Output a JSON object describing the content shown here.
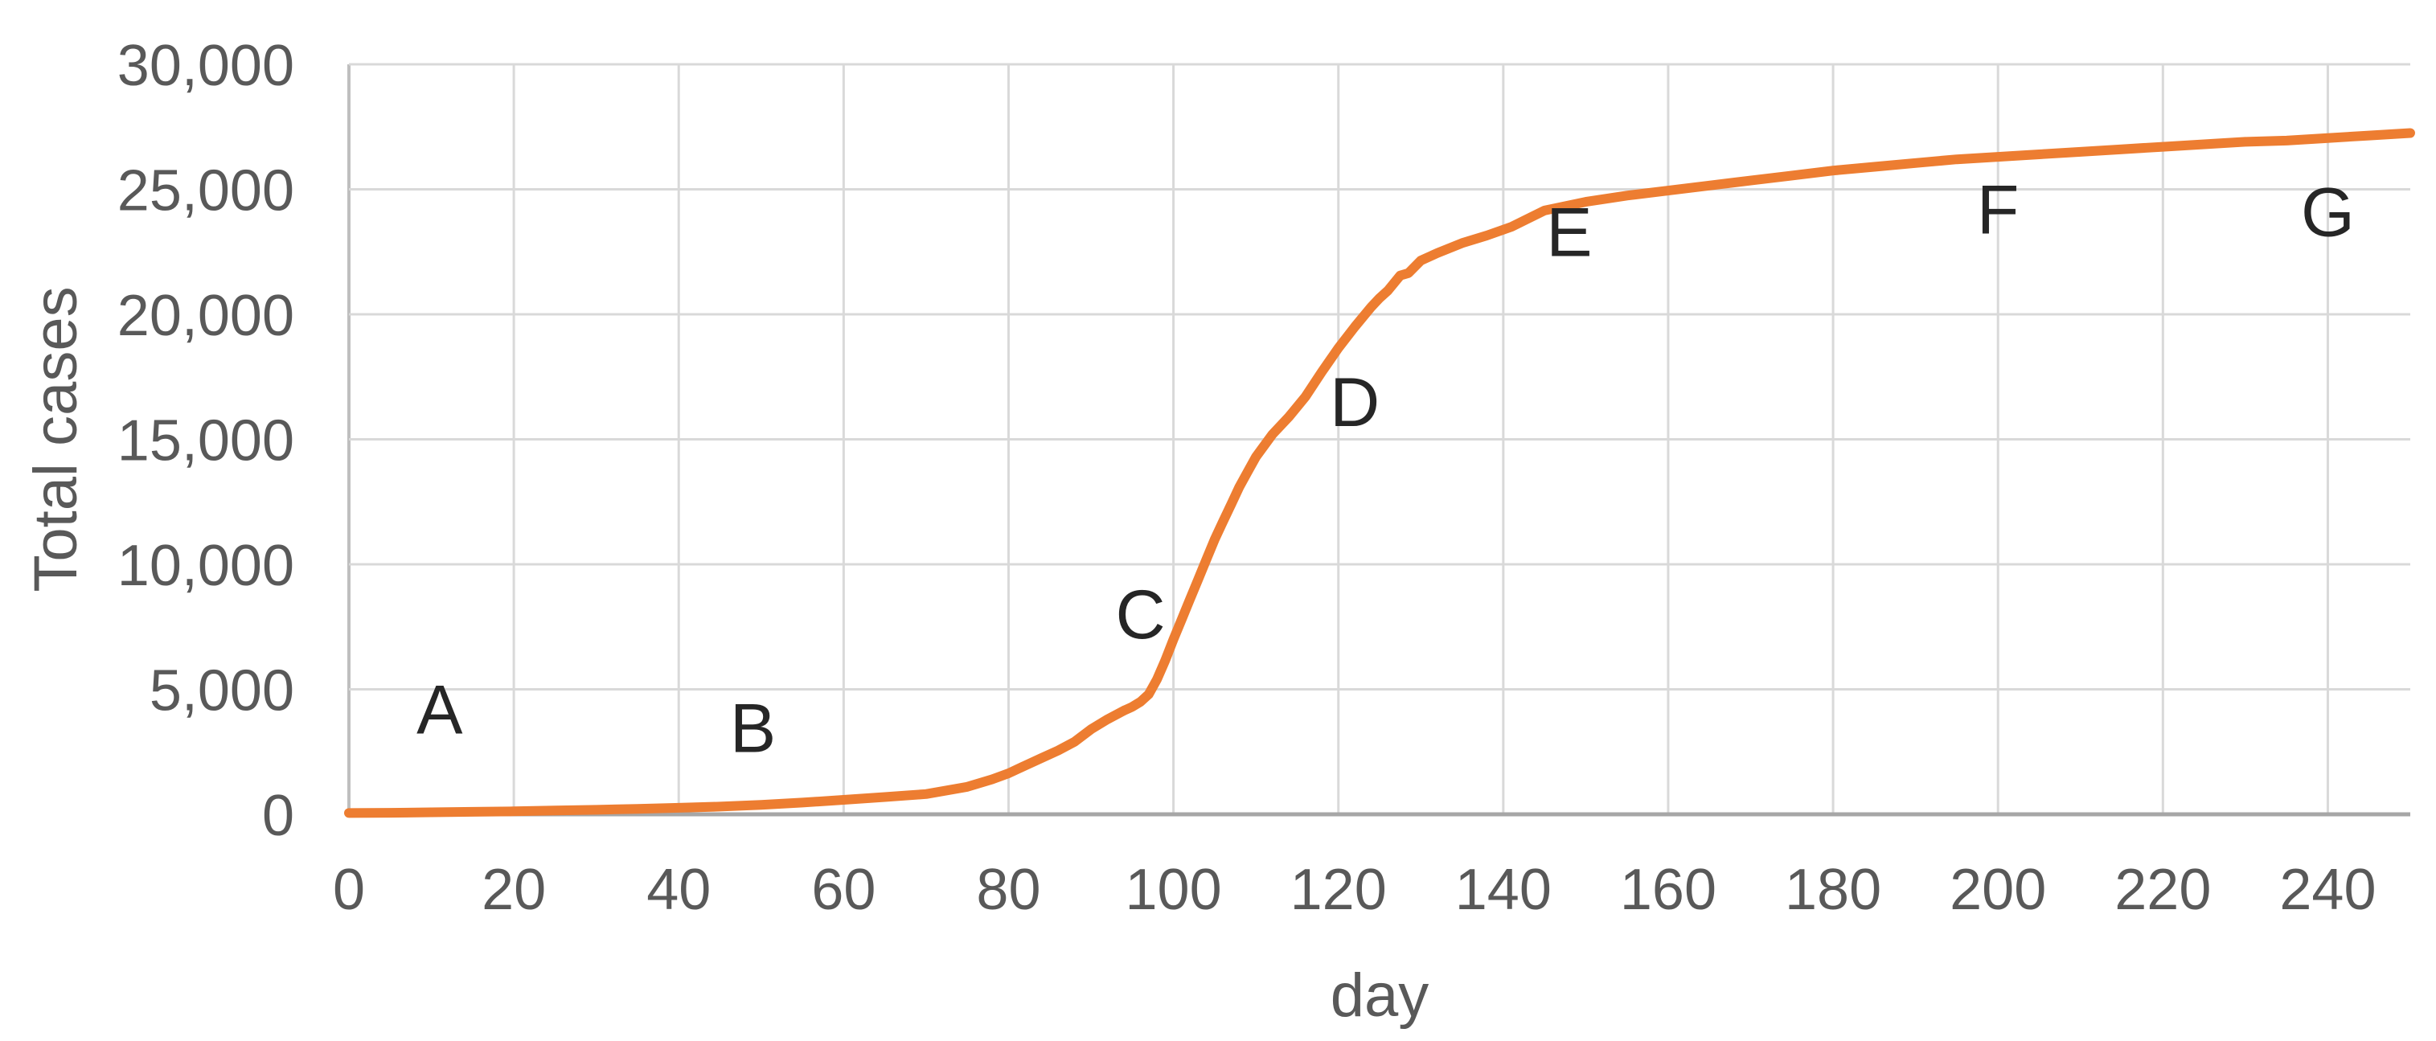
{
  "chart_data": {
    "type": "line",
    "title": "",
    "xlabel": "day",
    "ylabel": "Total cases",
    "xlim": [
      0,
      250
    ],
    "ylim": [
      0,
      30000
    ],
    "grid": true,
    "legend": "none",
    "x_ticks": [
      0,
      20,
      40,
      60,
      80,
      100,
      120,
      140,
      160,
      180,
      200,
      220,
      240
    ],
    "x_tick_labels": [
      "0",
      "20",
      "40",
      "60",
      "80",
      "100",
      "120",
      "140",
      "160",
      "180",
      "200",
      "220",
      "240"
    ],
    "y_ticks": [
      0,
      5000,
      10000,
      15000,
      20000,
      25000,
      30000
    ],
    "y_tick_labels": [
      "0",
      "5,000",
      "10,000",
      "15,000",
      "20,000",
      "25,000",
      "30,000"
    ],
    "series": [
      {
        "name": "Total cases",
        "color": "#ED7D31",
        "points": [
          [
            0,
            50
          ],
          [
            5,
            60
          ],
          [
            10,
            80
          ],
          [
            15,
            100
          ],
          [
            20,
            120
          ],
          [
            25,
            150
          ],
          [
            30,
            180
          ],
          [
            35,
            220
          ],
          [
            40,
            260
          ],
          [
            45,
            310
          ],
          [
            50,
            380
          ],
          [
            55,
            470
          ],
          [
            60,
            580
          ],
          [
            65,
            690
          ],
          [
            70,
            810
          ],
          [
            75,
            1100
          ],
          [
            78,
            1400
          ],
          [
            80,
            1640
          ],
          [
            82,
            1950
          ],
          [
            84,
            2250
          ],
          [
            86,
            2550
          ],
          [
            88,
            2900
          ],
          [
            90,
            3400
          ],
          [
            92,
            3800
          ],
          [
            94,
            4150
          ],
          [
            95,
            4300
          ],
          [
            96,
            4500
          ],
          [
            97,
            4800
          ],
          [
            98,
            5400
          ],
          [
            99,
            6150
          ],
          [
            100,
            7000
          ],
          [
            101,
            7800
          ],
          [
            102,
            8600
          ],
          [
            103,
            9400
          ],
          [
            104,
            10200
          ],
          [
            105,
            11000
          ],
          [
            106,
            11700
          ],
          [
            107,
            12400
          ],
          [
            108,
            13100
          ],
          [
            109,
            13700
          ],
          [
            110,
            14300
          ],
          [
            112,
            15200
          ],
          [
            114,
            15900
          ],
          [
            116,
            16700
          ],
          [
            118,
            17700
          ],
          [
            120,
            18650
          ],
          [
            122,
            19500
          ],
          [
            124,
            20300
          ],
          [
            125,
            20650
          ],
          [
            126,
            20950
          ],
          [
            127.5,
            21550
          ],
          [
            128.5,
            21650
          ],
          [
            130,
            22150
          ],
          [
            132,
            22450
          ],
          [
            135,
            22850
          ],
          [
            138,
            23150
          ],
          [
            141,
            23500
          ],
          [
            145,
            24150
          ],
          [
            150,
            24500
          ],
          [
            155,
            24750
          ],
          [
            160,
            24950
          ],
          [
            165,
            25150
          ],
          [
            170,
            25350
          ],
          [
            175,
            25550
          ],
          [
            180,
            25750
          ],
          [
            185,
            25900
          ],
          [
            190,
            26050
          ],
          [
            195,
            26200
          ],
          [
            200,
            26300
          ],
          [
            205,
            26400
          ],
          [
            210,
            26500
          ],
          [
            215,
            26600
          ],
          [
            220,
            26700
          ],
          [
            225,
            26800
          ],
          [
            230,
            26900
          ],
          [
            235,
            26950
          ],
          [
            240,
            27050
          ],
          [
            245,
            27150
          ],
          [
            250,
            27250
          ]
        ]
      }
    ],
    "annotations": [
      {
        "label": "A",
        "day": 11,
        "value": 4200
      },
      {
        "label": "B",
        "day": 49,
        "value": 3450
      },
      {
        "label": "C",
        "day": 96,
        "value": 8000
      },
      {
        "label": "D",
        "day": 122,
        "value": 16500
      },
      {
        "label": "E",
        "day": 148,
        "value": 23300
      },
      {
        "label": "F",
        "day": 200,
        "value": 24200
      },
      {
        "label": "G",
        "day": 240,
        "value": 24100
      }
    ]
  },
  "colors": {
    "line": "#ED7D31",
    "gridline": "#D9D9D9",
    "axis_line": "#BFBFBF",
    "bottom_axis": "#A6A6A6",
    "tick_text": "#595959",
    "annotation_text": "#262626",
    "background": "#FFFFFF"
  }
}
